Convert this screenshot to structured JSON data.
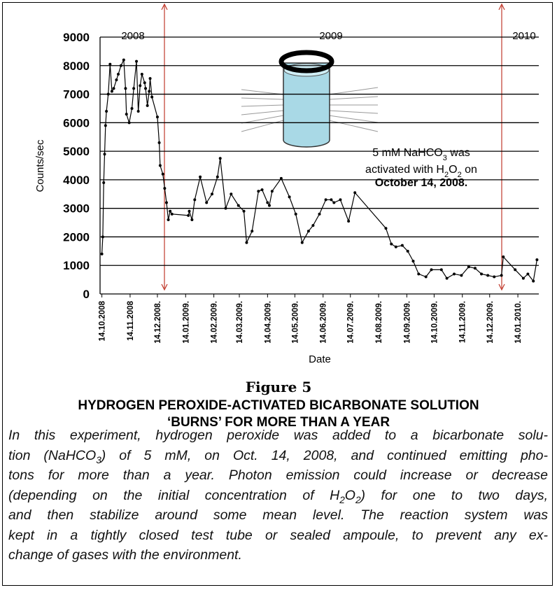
{
  "chart_data": {
    "type": "line",
    "ylabel": "Counts/sec",
    "xlabel": "Date",
    "x": [
      "2008-10-14",
      "2008-10-15",
      "2008-10-16",
      "2008-10-17",
      "2008-10-18",
      "2008-10-19",
      "2008-10-21",
      "2008-10-23",
      "2008-10-25",
      "2008-10-27",
      "2008-10-30",
      "2008-11-01",
      "2008-11-04",
      "2008-11-07",
      "2008-11-09",
      "2008-11-10",
      "2008-11-13",
      "2008-11-16",
      "2008-11-18",
      "2008-11-21",
      "2008-11-23",
      "2008-11-25",
      "2008-11-27",
      "2008-11-30",
      "2008-12-01",
      "2008-12-03",
      "2008-12-05",
      "2008-12-06",
      "2008-12-08",
      "2008-12-14",
      "2008-12-16",
      "2008-12-17",
      "2008-12-20",
      "2008-12-22",
      "2008-12-24",
      "2008-12-26",
      "2008-12-28",
      "2008-12-30",
      "2009-01-17",
      "2009-01-18",
      "2009-01-21",
      "2009-01-24",
      "2009-01-30",
      "2009-02-06",
      "2009-02-12",
      "2009-02-18",
      "2009-02-21",
      "2009-02-27",
      "2009-03-05",
      "2009-03-13",
      "2009-03-19",
      "2009-03-22",
      "2009-03-28",
      "2009-04-04",
      "2009-04-08",
      "2009-04-14",
      "2009-04-16",
      "2009-04-19",
      "2009-04-29",
      "2009-05-08",
      "2009-05-15",
      "2009-05-22",
      "2009-05-29",
      "2009-06-03",
      "2009-06-10",
      "2009-06-17",
      "2009-06-23",
      "2009-06-26",
      "2009-07-03",
      "2009-07-12",
      "2009-07-19",
      "2009-08-22",
      "2009-08-28",
      "2009-09-02",
      "2009-09-09",
      "2009-09-15",
      "2009-09-21",
      "2009-09-27",
      "2009-10-05",
      "2009-10-11",
      "2009-10-22",
      "2009-10-28",
      "2009-11-05",
      "2009-11-13",
      "2009-11-21",
      "2009-11-28",
      "2009-12-05",
      "2009-12-12",
      "2009-12-19",
      "2009-12-27",
      "2009-12-29",
      "2010-01-11",
      "2010-01-20",
      "2010-01-25",
      "2010-01-31",
      "2010-02-04"
    ],
    "series": [
      {
        "color": "#000000",
        "values": [
          1400,
          2000,
          3900,
          4900,
          5900,
          6400,
          7000,
          8050,
          7100,
          7200,
          7500,
          7700,
          8000,
          8200,
          7200,
          6300,
          6000,
          6500,
          7200,
          8150,
          6400,
          7300,
          7700,
          7400,
          7200,
          6600,
          7100,
          7550,
          6900,
          6200,
          5300,
          4500,
          4200,
          3700,
          3200,
          2600,
          2900,
          2800,
          2750,
          2900,
          2600,
          3300,
          4100,
          3200,
          3500,
          4100,
          4750,
          3000,
          3500,
          3100,
          2900,
          1800,
          2200,
          3600,
          3650,
          3200,
          3100,
          3600,
          4050,
          3400,
          2800,
          1800,
          2200,
          2400,
          2800,
          3300,
          3300,
          3200,
          3300,
          2550,
          3550,
          2300,
          1750,
          1650,
          1700,
          1500,
          1150,
          700,
          600,
          850,
          850,
          550,
          700,
          650,
          950,
          900,
          700,
          650,
          600,
          650,
          1300,
          850,
          550,
          700,
          450,
          1200
        ]
      }
    ],
    "xlim": [
      "2008-10-12",
      "2010-02-06"
    ],
    "ylim": [
      0,
      9000
    ],
    "xticks": [
      {
        "value": "2008-10-14",
        "label": "14.10.2008"
      },
      {
        "value": "2008-11-14",
        "label": "14.11.2008"
      },
      {
        "value": "2008-12-14",
        "label": "14.12.2008."
      },
      {
        "value": "2009-01-14",
        "label": "14.01.2009."
      },
      {
        "value": "2009-02-14",
        "label": "14.02.2009."
      },
      {
        "value": "2009-03-14",
        "label": "14.03.2009."
      },
      {
        "value": "2009-04-14",
        "label": "14.04.2009."
      },
      {
        "value": "2009-05-14",
        "label": "14.05.2009."
      },
      {
        "value": "2009-06-14",
        "label": "14.06.2009."
      },
      {
        "value": "2009-07-14",
        "label": "14.07.2009."
      },
      {
        "value": "2009-08-14",
        "label": "14.08.2009."
      },
      {
        "value": "2009-09-14",
        "label": "14.09.2009."
      },
      {
        "value": "2009-10-14",
        "label": "14.10.2009."
      },
      {
        "value": "2009-11-14",
        "label": "14.11.2009."
      },
      {
        "value": "2009-12-14",
        "label": "14.12.2009."
      },
      {
        "value": "2010-01-14",
        "label": "14.01.2010."
      }
    ],
    "yticks": [
      0,
      1000,
      2000,
      3000,
      4000,
      5000,
      6000,
      7000,
      8000,
      9000
    ],
    "grid": true,
    "year_labels": [
      "2008",
      "2009",
      "2010"
    ],
    "note": [
      [
        "5 mM NaHCO",
        "3",
        " was"
      ],
      [
        "activated with H",
        "2",
        "O",
        "2",
        "  on"
      ],
      [
        "October 14,  2008."
      ]
    ]
  },
  "figure": {
    "label": "Figure 5",
    "title": [
      "HYDROGEN PEROXIDE-ACTIVATED BICARBONATE SOLUTION",
      "‘BURNS’ FOR MORE THAN A YEAR"
    ],
    "caption": [
      [
        "In this experiment, hydrogen peroxide was added to a bicarbonate solu-"
      ],
      [
        "tion (NaHCO",
        "3",
        ") of 5 mM, on Oct. 14, 2008, and continued emitting pho-"
      ],
      [
        "tons for more than a year. Photon emission could increase or decrease"
      ],
      [
        "(depending on the initial concentration of H",
        "2",
        "O",
        "2",
        ") for one to two days,"
      ],
      [
        "and then stabilize around some mean level. The reaction system was"
      ],
      [
        "kept in a tightly closed test tube or sealed ampoule, to prevent any ex-"
      ],
      [
        "change of gases with the environment."
      ]
    ]
  }
}
